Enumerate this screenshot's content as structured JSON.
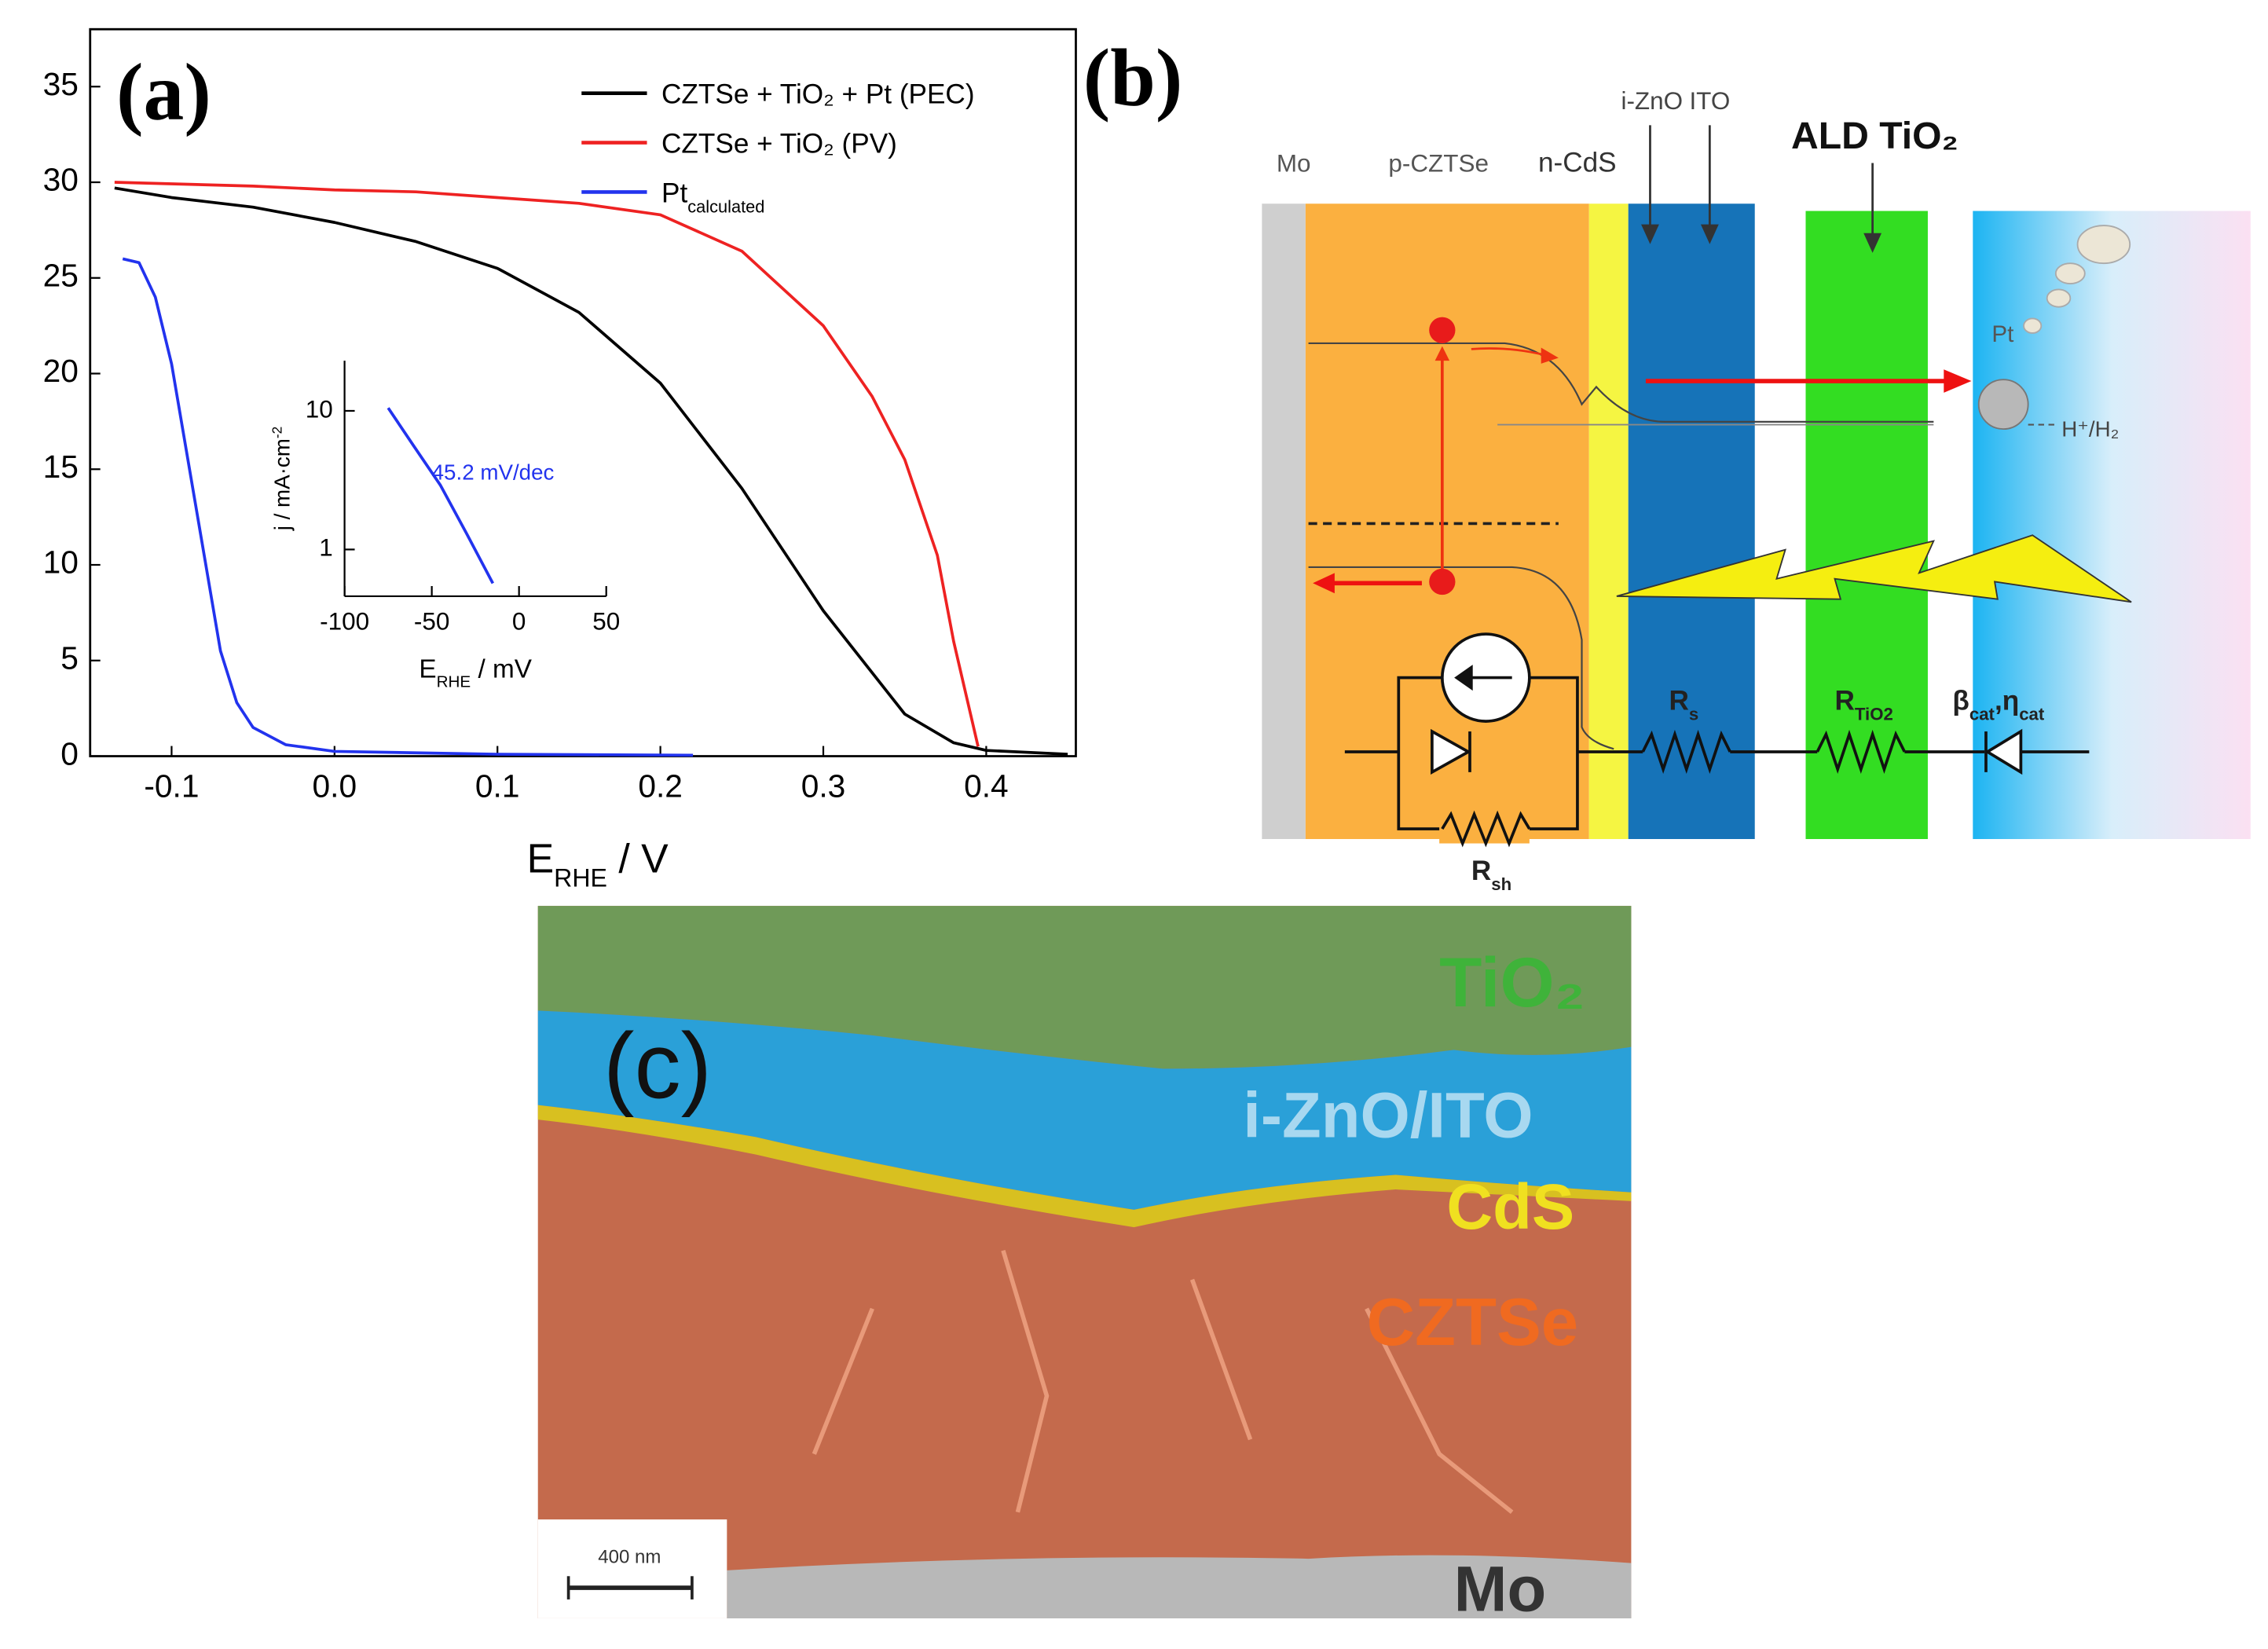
{
  "chart_data": [
    {
      "type": "line",
      "panel_label": "(a)",
      "xlabel": "E",
      "xlabel_sub": "RHE",
      "xlabel_rest": " / V",
      "xlim": [
        -0.15,
        0.455
      ],
      "ylim": [
        0,
        38
      ],
      "xticks": [
        -0.1,
        {
          "value": 0,
          "label": "0.0"
        },
        0.1,
        0.2,
        0.3,
        0.4
      ],
      "yticks": [
        0,
        5,
        10,
        15,
        20,
        25,
        30,
        35
      ],
      "legend": "upper right",
      "series": [
        {
          "name": "CZTSe + TiO₂ + Pt (PEC)",
          "color": "#000000",
          "x": [
            -0.135,
            -0.1,
            -0.05,
            0.0,
            0.05,
            0.1,
            0.15,
            0.2,
            0.25,
            0.3,
            0.35,
            0.38,
            0.4,
            0.45
          ],
          "values": [
            29.7,
            29.2,
            28.7,
            27.9,
            26.9,
            25.5,
            23.2,
            19.5,
            14.0,
            7.6,
            2.2,
            0.7,
            0.3,
            0.1
          ]
        },
        {
          "name": "CZTSe + TiO₂ (PV)",
          "color": "#ee2222",
          "x": [
            -0.135,
            -0.05,
            0.0,
            0.05,
            0.1,
            0.15,
            0.2,
            0.25,
            0.3,
            0.33,
            0.35,
            0.37,
            0.38,
            0.395
          ],
          "values": [
            30.0,
            29.8,
            29.6,
            29.5,
            29.2,
            28.9,
            28.3,
            26.4,
            22.5,
            18.8,
            15.5,
            10.5,
            6.0,
            0.5
          ]
        },
        {
          "name": "Pt",
          "name_sub": "calculated",
          "color": "#2233ee",
          "x": [
            -0.13,
            -0.12,
            -0.11,
            -0.1,
            -0.09,
            -0.08,
            -0.07,
            -0.06,
            -0.05,
            -0.03,
            0.0,
            0.1,
            0.22
          ],
          "values": [
            26.0,
            25.8,
            24.0,
            20.5,
            15.5,
            10.5,
            5.5,
            2.8,
            1.5,
            0.6,
            0.25,
            0.1,
            0.05
          ]
        }
      ]
    },
    {
      "type": "line",
      "log_y": true,
      "xlabel": "E",
      "xlabel_sub": "RHE",
      "xlabel_rest": " / mV",
      "ylabel": "j / mA·cm",
      "ylabel_sup": "-2",
      "xlim": [
        -100,
        50
      ],
      "ylim": [
        0.46,
        23
      ],
      "xticks": [
        -100,
        -50,
        0,
        50
      ],
      "yticks": [
        1,
        10
      ],
      "annotation": "45.2 mV/dec",
      "series": [
        {
          "color": "#2233ee",
          "x": [
            -75,
            -60,
            -45,
            -30,
            -15
          ],
          "values": [
            10.5,
            5.5,
            2.9,
            1.3,
            0.57
          ]
        }
      ]
    }
  ],
  "diagram": {
    "panel_label": "(b)",
    "mo": "Mo",
    "absorber": "p-CZTSe",
    "buffer": "n-CdS",
    "window": "i-ZnO",
    "tco": "ITO",
    "protection": "ALD TiO₂",
    "catalyst": "Pt",
    "redox": "H⁺/H₂",
    "rs": {
      "text": "R",
      "sub": "s"
    },
    "rtio2": {
      "text": "R",
      "sub": "TiO2"
    },
    "cat": {
      "text": "β",
      "sub": "cat",
      "text2": ",η",
      "sub2": "cat"
    },
    "rsh": {
      "text": "R",
      "sub": "sh"
    }
  },
  "micrograph": {
    "panel_label": "(c)",
    "tio2": "TiO₂",
    "izno_ito": "i-ZnO/ITO",
    "cds": "CdS",
    "czts": "CZTSe",
    "mo": "Mo",
    "scale_bar": "400 nm"
  }
}
